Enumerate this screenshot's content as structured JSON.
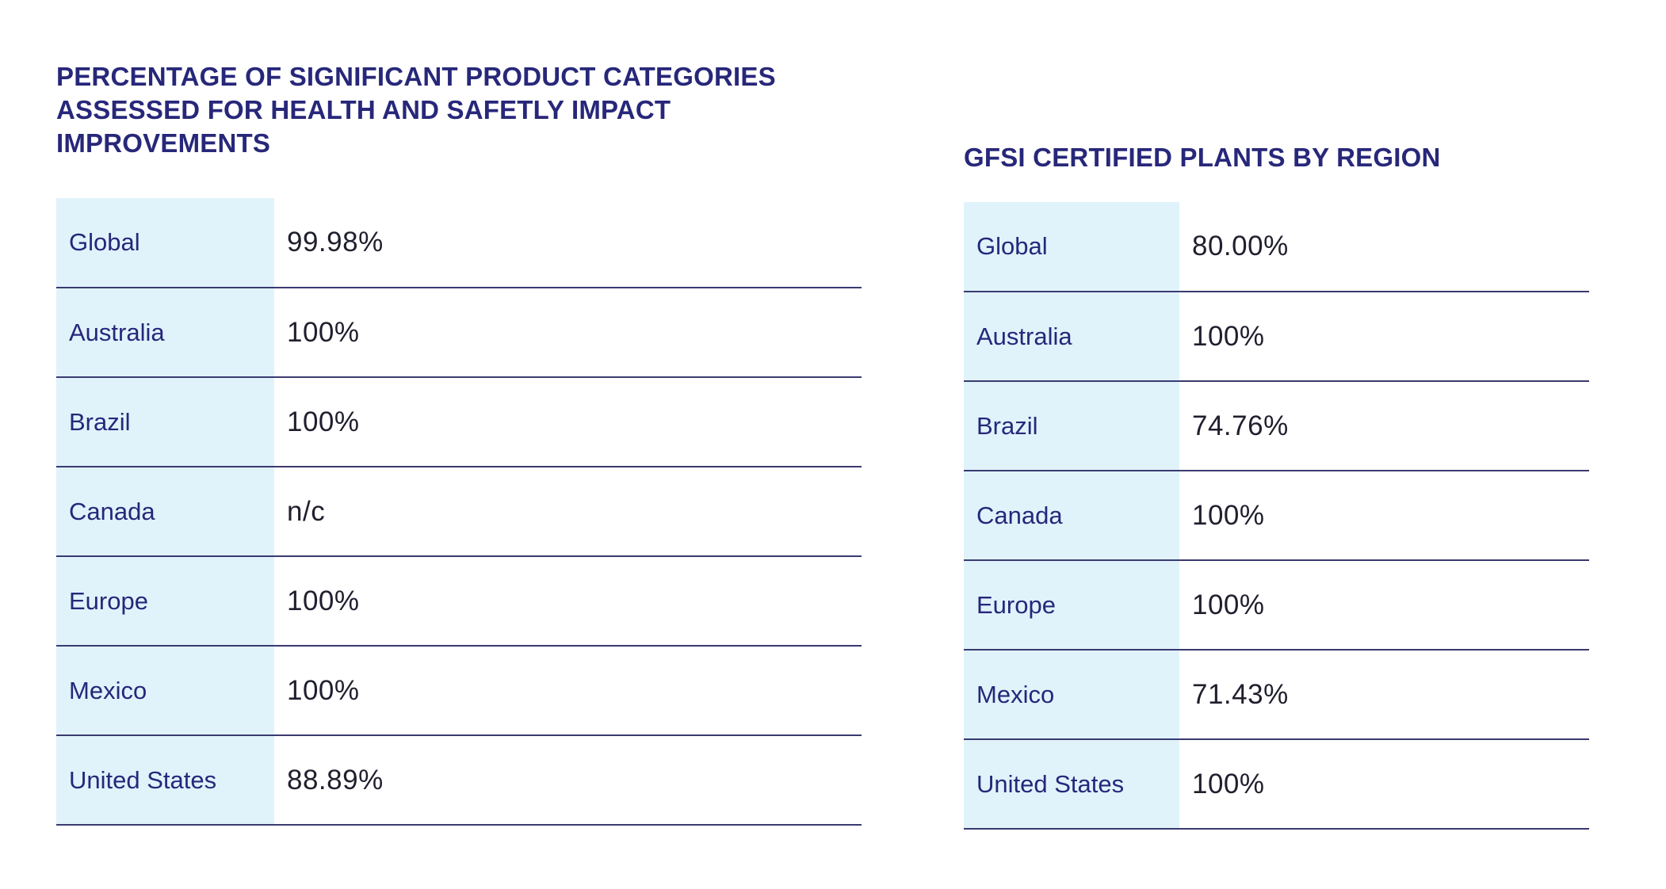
{
  "left_table": {
    "title": "PERCENTAGE OF SIGNIFICANT PRODUCT CATEGORIES ASSESSED FOR HEALTH AND SAFETLY IMPACT IMPROVEMENTS",
    "title_lines": [
      "PERCENTAGE OF SIGNIFICANT PRODUCT CATEGORIES",
      "ASSESSED FOR HEALTH AND SAFETLY IMPACT",
      "IMPROVEMENTS"
    ],
    "rows": [
      {
        "region": "Global",
        "value": "99.98%"
      },
      {
        "region": "Australia",
        "value": "100%"
      },
      {
        "region": "Brazil",
        "value": "100%"
      },
      {
        "region": "Canada",
        "value": "n/c"
      },
      {
        "region": "Europe",
        "value": "100%"
      },
      {
        "region": "Mexico",
        "value": "100%"
      },
      {
        "region": "United States",
        "value": "88.89%"
      }
    ]
  },
  "right_table": {
    "title": "GFSI CERTIFIED PLANTS BY REGION",
    "rows": [
      {
        "region": "Global",
        "value": "80.00%"
      },
      {
        "region": "Australia",
        "value": "100%"
      },
      {
        "region": "Brazil",
        "value": "74.76%"
      },
      {
        "region": "Canada",
        "value": "100%"
      },
      {
        "region": "Europe",
        "value": "100%"
      },
      {
        "region": "Mexico",
        "value": "71.43%"
      },
      {
        "region": "United States",
        "value": "100%"
      }
    ]
  },
  "colors": {
    "heading": "#27277a",
    "region_cell_bg": "#e0f3fb",
    "rule": "#3a3a70"
  }
}
